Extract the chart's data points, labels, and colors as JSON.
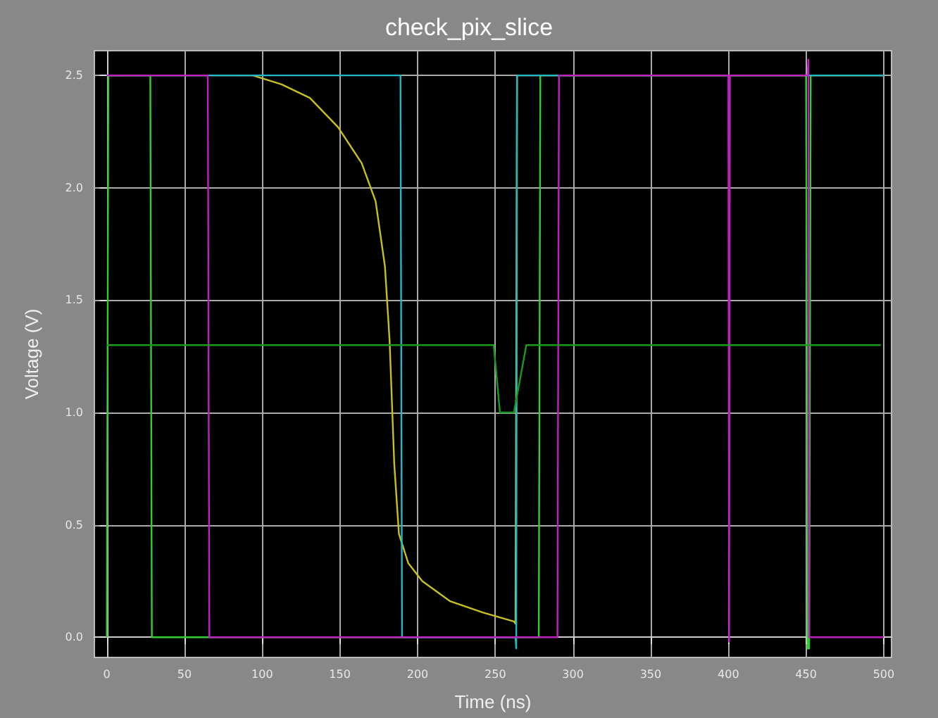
{
  "chart_data": {
    "type": "line",
    "title": "check_pix_slice",
    "xlabel": "Time (ns)",
    "ylabel": "Voltage (V)",
    "xlim": [
      -8,
      505
    ],
    "xticks": [
      0,
      50,
      100,
      150,
      200,
      250,
      300,
      350,
      400,
      450,
      500
    ],
    "ylim": [
      -0.09,
      2.61
    ],
    "yticks": [
      {
        "value": 0,
        "label": "0.0"
      },
      {
        "value": 0.5,
        "label": "0.5"
      },
      {
        "value": 1,
        "label": "1.0"
      },
      {
        "value": 1.5,
        "label": "1.5"
      },
      {
        "value": 2,
        "label": "2.0"
      },
      {
        "value": 2.5,
        "label": "2.5"
      }
    ],
    "grid": true,
    "marker": "none",
    "line_style": "solid",
    "series": [
      {
        "color": "#33cc33",
        "x": [
          0,
          1,
          28,
          29,
          278,
          279,
          450,
          451,
          452,
          453,
          500
        ],
        "values": [
          0,
          2.5,
          2.5,
          0,
          0,
          2.5,
          2.5,
          -0.05,
          -0.05,
          2.5,
          2.5
        ]
      },
      {
        "color": "#c8c020",
        "x": [
          0,
          79,
          94,
          112.5,
          130.7,
          148.8,
          164,
          173,
          179,
          182,
          185,
          188,
          194,
          203,
          221,
          242,
          262,
          263,
          264,
          500
        ],
        "values": [
          2.5,
          2.5,
          2.5,
          2.46,
          2.4,
          2.27,
          2.11,
          1.94,
          1.65,
          1.32,
          0.77,
          0.46,
          0.33,
          0.25,
          0.16,
          0.11,
          0.07,
          0.06,
          2.5,
          2.5
        ]
      },
      {
        "color": "#22b8c8",
        "x": [
          0,
          189,
          190,
          263,
          263.5,
          264,
          500
        ],
        "values": [
          2.5,
          2.5,
          0,
          0,
          -0.05,
          2.5,
          2.5
        ]
      },
      {
        "color": "#c020c0",
        "x": [
          0,
          65,
          66,
          290,
          291,
          400,
          400.5,
          401,
          451,
          451.5,
          452,
          500
        ],
        "values": [
          2.5,
          2.5,
          0,
          0,
          2.5,
          2.5,
          -0.02,
          2.5,
          2.5,
          2.57,
          0,
          0
        ]
      },
      {
        "color": "#1a9a1a",
        "x": [
          0,
          249,
          253,
          262,
          270,
          498
        ],
        "values": [
          1.3,
          1.3,
          1,
          1,
          1.3,
          1.3
        ]
      }
    ]
  }
}
